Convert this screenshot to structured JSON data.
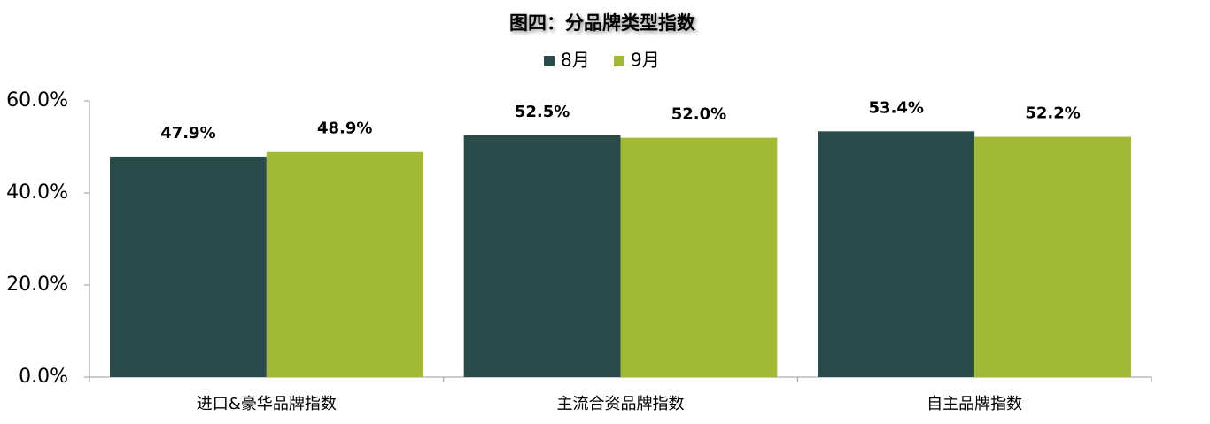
{
  "chart_data": {
    "type": "bar",
    "title": "图四：分品牌类型指数",
    "categories": [
      "进口&豪华品牌指数",
      "主流合资品牌指数",
      "自主品牌指数"
    ],
    "series": [
      {
        "name": "8月",
        "color": "#2b4a4a",
        "values": [
          47.9,
          52.5,
          53.4
        ],
        "value_labels": [
          "47.9%",
          "52.5%",
          "53.4%"
        ]
      },
      {
        "name": "9月",
        "color": "#a2b935",
        "values": [
          48.9,
          52.0,
          52.2
        ],
        "value_labels": [
          "48.9%",
          "52.0%",
          "52.2%"
        ]
      }
    ],
    "ylim": [
      0,
      60
    ],
    "yticks": [
      {
        "value": 0,
        "label": "0.0%"
      },
      {
        "value": 20,
        "label": "20.0%"
      },
      {
        "value": 40,
        "label": "40.0%"
      },
      {
        "value": 60,
        "label": "60.0%"
      }
    ],
    "grid": false,
    "legend": "top"
  }
}
